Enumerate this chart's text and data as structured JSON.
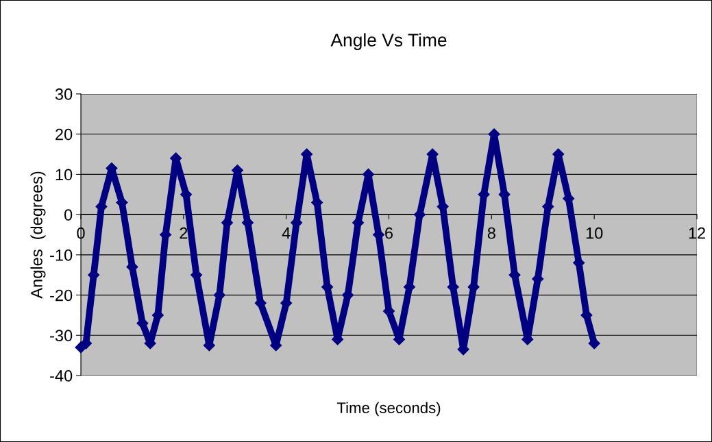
{
  "chart_data": {
    "type": "line",
    "title": "Angle Vs Time",
    "xlabel": "Time (seconds)",
    "ylabel": "Angles  (degrees)",
    "xlim": [
      0,
      12
    ],
    "xticks": [
      0,
      2,
      4,
      6,
      8,
      10,
      12
    ],
    "ylim": [
      -40,
      30
    ],
    "yticks": [
      -40,
      -30,
      -20,
      -10,
      0,
      10,
      20,
      30
    ],
    "grid": "y",
    "marker": "diamond",
    "line_style": "solid",
    "series": [
      {
        "color": "#000080",
        "x": [
          0,
          0.1,
          0.25,
          0.4,
          0.6,
          0.8,
          1.0,
          1.2,
          1.35,
          1.5,
          1.65,
          1.85,
          2.05,
          2.25,
          2.5,
          2.7,
          2.85,
          3.05,
          3.25,
          3.5,
          3.8,
          4.0,
          4.2,
          4.4,
          4.6,
          4.8,
          5.0,
          5.2,
          5.4,
          5.6,
          5.8,
          6.0,
          6.2,
          6.4,
          6.6,
          6.85,
          7.05,
          7.25,
          7.45,
          7.65,
          7.85,
          8.05,
          8.25,
          8.45,
          8.7,
          8.9,
          9.1,
          9.3,
          9.5,
          9.7,
          9.85,
          10
        ],
        "values": [
          -33,
          -32,
          -15,
          2,
          11.5,
          3,
          -13,
          -27,
          -32,
          -25,
          -5,
          14,
          5,
          -15,
          -32.5,
          -20,
          -2,
          11,
          -2,
          -22,
          -32.5,
          -22,
          -2,
          15,
          3,
          -18,
          -31,
          -20,
          -2,
          10,
          -5,
          -24,
          -31,
          -18,
          0,
          15,
          2,
          -18,
          -33.5,
          -18,
          5,
          20,
          5,
          -15,
          -31,
          -16,
          2,
          15,
          4,
          -12,
          -25,
          -32
        ]
      }
    ]
  }
}
